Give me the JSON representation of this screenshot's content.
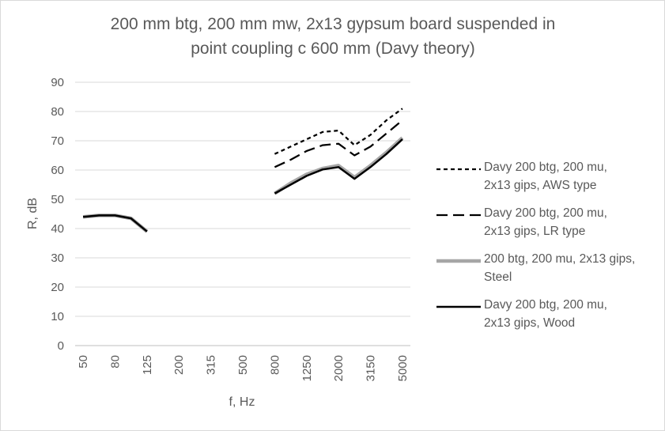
{
  "chart_data": {
    "type": "line",
    "title_line1": "200 mm btg, 200 mm mw, 2x13 gypsum board suspended in",
    "title_line2": "point coupling c 600 mm (Davy theory)",
    "xlabel": "f, Hz",
    "ylabel": "R, dB",
    "ylim": [
      0,
      90
    ],
    "yticks": [
      0,
      10,
      20,
      30,
      40,
      50,
      60,
      70,
      80,
      90
    ],
    "categories": [
      "50",
      "63",
      "80",
      "100",
      "125",
      "160",
      "200",
      "250",
      "315",
      "400",
      "500",
      "630",
      "800",
      "1000",
      "1250",
      "1600",
      "2000",
      "2500",
      "3150",
      "4000",
      "5000"
    ],
    "xtick_labels_shown": [
      "50",
      "80",
      "125",
      "200",
      "315",
      "500",
      "800",
      "1250",
      "2000",
      "3150",
      "5000"
    ],
    "grid": "horizontal",
    "legend_position": "right",
    "series": [
      {
        "name_line1": "Davy 200 btg, 200 mu,",
        "name_line2": "2x13 gips, AWS type",
        "color": "#000000",
        "dash": "short-dash",
        "values": [
          null,
          null,
          null,
          null,
          null,
          null,
          null,
          null,
          null,
          null,
          null,
          null,
          65.5,
          68,
          70.5,
          73,
          73.5,
          68.5,
          72,
          77,
          81
        ]
      },
      {
        "name_line1": "Davy 200 btg, 200 mu,",
        "name_line2": "2x13 gips, LR type",
        "color": "#000000",
        "dash": "long-dash",
        "values": [
          null,
          null,
          null,
          null,
          null,
          null,
          null,
          null,
          null,
          null,
          null,
          null,
          61,
          63.5,
          66.5,
          68.5,
          69,
          65,
          68,
          72.5,
          77
        ]
      },
      {
        "name_line1": "200 btg, 200 mu, 2x13 gips,",
        "name_line2": "Steel",
        "color": "#a6a6a6",
        "dash": "solid-thick",
        "values": [
          44,
          44.5,
          44.5,
          43.5,
          39,
          null,
          null,
          null,
          null,
          null,
          null,
          null,
          52,
          55.5,
          58.5,
          60.5,
          61.5,
          57.5,
          61.5,
          66,
          71
        ]
      },
      {
        "name_line1": "Davy 200 btg, 200 mu,",
        "name_line2": "2x13 gips, Wood",
        "color": "#000000",
        "dash": "solid",
        "values": [
          44,
          44.5,
          44.5,
          43.5,
          39,
          null,
          null,
          null,
          null,
          null,
          null,
          null,
          52,
          55,
          58,
          60.2,
          61,
          57,
          61,
          65.5,
          70.5
        ]
      }
    ]
  }
}
